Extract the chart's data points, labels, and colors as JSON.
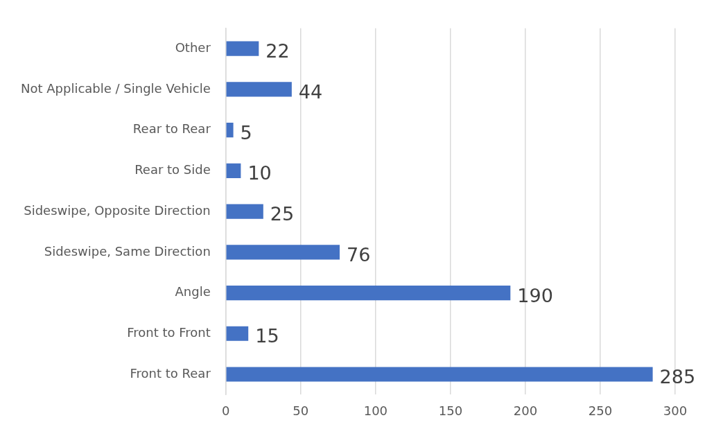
{
  "chart_data": {
    "type": "bar",
    "orientation": "horizontal",
    "categories": [
      "Other",
      "Not Applicable / Single Vehicle",
      "Rear to Rear",
      "Rear to Side",
      "Sideswipe, Opposite Direction",
      "Sideswipe, Same Direction",
      "Angle",
      "Front to Front",
      "Front to Rear"
    ],
    "values": [
      22,
      44,
      5,
      10,
      25,
      76,
      190,
      15,
      285
    ],
    "color": "#4472c4",
    "xlim": [
      0,
      300
    ],
    "xticks": [
      0,
      50,
      100,
      150,
      200,
      250,
      300
    ],
    "grid": "x",
    "data_labels": true,
    "legend": false
  }
}
